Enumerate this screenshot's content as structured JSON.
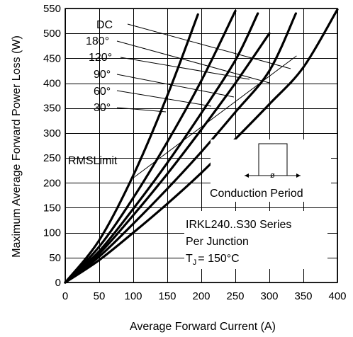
{
  "chart_data": {
    "type": "line",
    "xlabel": "Average Forward Current (A)",
    "ylabel": "Maximum Average Forward Power Loss (W)",
    "xlim": [
      0,
      400
    ],
    "ylim": [
      0,
      550
    ],
    "x_ticks": [
      0,
      50,
      100,
      150,
      200,
      250,
      300,
      350,
      400
    ],
    "y_ticks": [
      0,
      50,
      100,
      150,
      200,
      250,
      300,
      350,
      400,
      450,
      500,
      550
    ],
    "grid": true,
    "series": [
      {
        "name": "30°",
        "x": [
          0,
          50,
          100,
          150,
          195
        ],
        "y": [
          0,
          85,
          215,
          375,
          538
        ]
      },
      {
        "name": "60°",
        "x": [
          0,
          50,
          100,
          150,
          200,
          250
        ],
        "y": [
          0,
          72,
          170,
          282,
          405,
          545
        ]
      },
      {
        "name": "90°",
        "x": [
          0,
          50,
          100,
          150,
          200,
          250,
          283
        ],
        "y": [
          0,
          63,
          148,
          240,
          340,
          446,
          540
        ]
      },
      {
        "name": "120°",
        "x": [
          0,
          50,
          100,
          150,
          200,
          250,
          300
        ],
        "y": [
          0,
          58,
          135,
          218,
          307,
          400,
          500
        ]
      },
      {
        "name": "180°",
        "x": [
          0,
          50,
          100,
          150,
          200,
          250,
          300,
          339
        ],
        "y": [
          0,
          52,
          118,
          188,
          262,
          342,
          425,
          540
        ]
      },
      {
        "name": "DC",
        "x": [
          0,
          50,
          100,
          150,
          200,
          250,
          300,
          350,
          400
        ],
        "y": [
          0,
          45,
          100,
          158,
          220,
          288,
          358,
          432,
          548
        ]
      }
    ],
    "rms_limit_line": {
      "x": [
        100,
        340
      ],
      "y": [
        210,
        455
      ]
    },
    "labels": {
      "dc": "DC",
      "a180": "180°",
      "a120": "120°",
      "a90": "90°",
      "a60": "60°",
      "a30": "30°",
      "rms": "RMSLimit",
      "conduction": "Conduction Period",
      "phi": "ø",
      "series_line1": "IRKL240..S30  Series",
      "series_line2": "Per Junction",
      "tj_prefix": "T",
      "tj_sub": "J",
      "tj_value": "= 150°C"
    }
  }
}
